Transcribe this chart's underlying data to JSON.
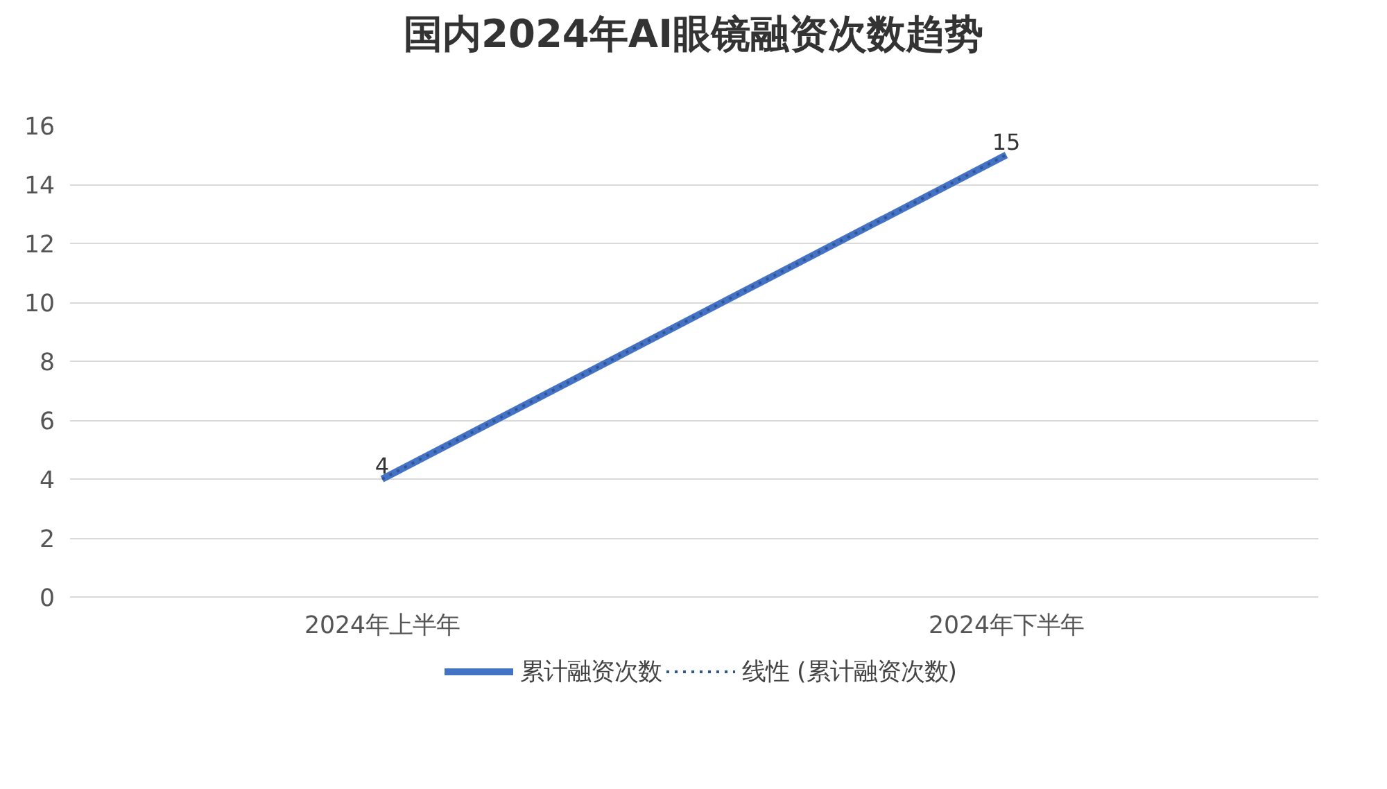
{
  "chart_data": {
    "type": "line",
    "title": "国内2024年AI眼镜融资次数趋势",
    "categories": [
      "2024年上半年",
      "2024年下半年"
    ],
    "series": [
      {
        "name": "累计融资次数",
        "color": "#4472c4",
        "values": [
          4,
          15
        ],
        "line_style": "solid",
        "value_labels": [
          "4",
          "15"
        ]
      },
      {
        "name": "线性 (累计融资次数)",
        "color": "#2f5597",
        "values": [
          4,
          15
        ],
        "line_style": "dotted"
      }
    ],
    "ylim": [
      0,
      16
    ],
    "yticks": [
      0,
      2,
      4,
      6,
      8,
      10,
      12,
      14,
      16
    ],
    "grid": "y",
    "legend": "bottom"
  }
}
